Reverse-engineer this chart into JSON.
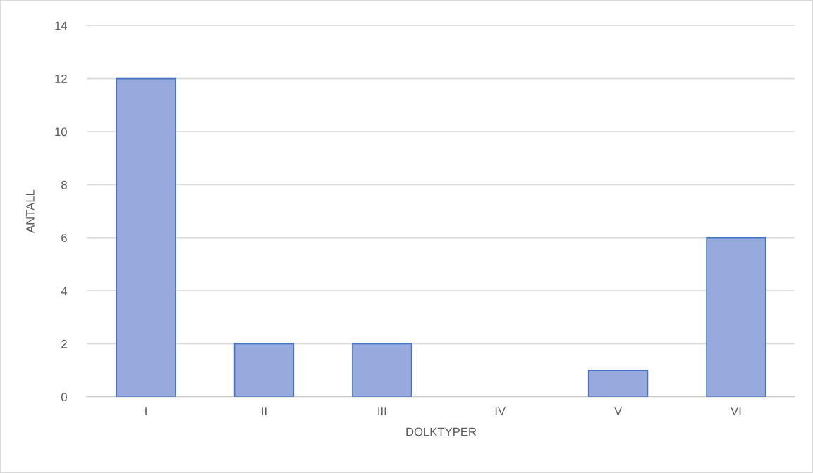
{
  "chart_data": {
    "type": "bar",
    "xlabel": "DOLKTYPER",
    "ylabel": "ANTALL",
    "categories": [
      "I",
      "II",
      "III",
      "IV",
      "V",
      "VI"
    ],
    "values": [
      12,
      2,
      2,
      0,
      1,
      6
    ],
    "color": "#97aadd",
    "ylim": [
      0,
      14
    ],
    "yticks": [
      0,
      2,
      4,
      6,
      8,
      10,
      12,
      14
    ],
    "grid": "y"
  }
}
